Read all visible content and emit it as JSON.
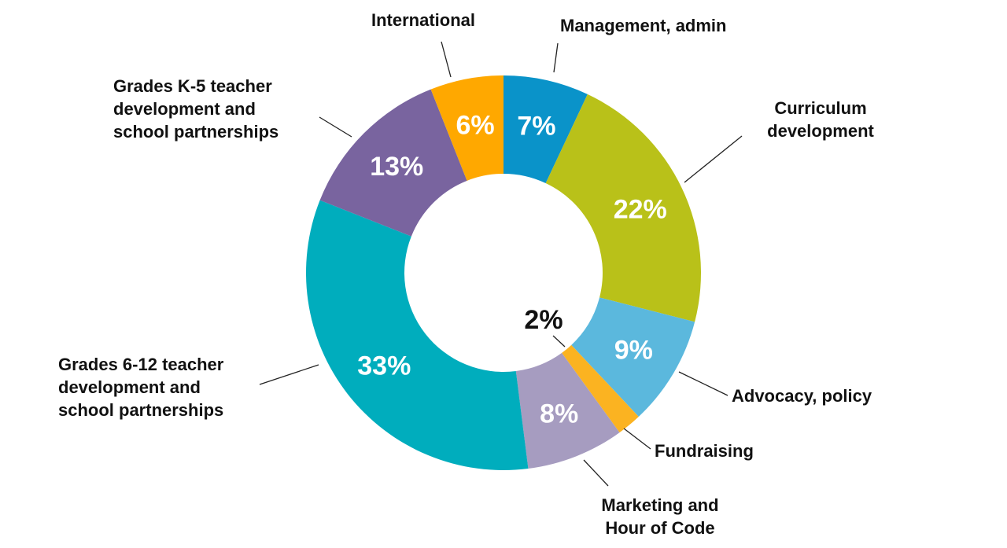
{
  "chart_data": {
    "type": "pie",
    "variant": "donut",
    "title": "",
    "slices": [
      {
        "label": "Management, admin",
        "value": 7,
        "value_label": "7%",
        "color": "#0a93c9"
      },
      {
        "label": "Curriculum development",
        "value": 22,
        "value_label": "22%",
        "color": "#b9c119"
      },
      {
        "label": "Advocacy, policy",
        "value": 9,
        "value_label": "9%",
        "color": "#5bb8dd"
      },
      {
        "label": "Fundraising",
        "value": 2,
        "value_label": "2%",
        "color": "#fbb321"
      },
      {
        "label": "Marketing and Hour of Code",
        "value": 8,
        "value_label": "8%",
        "color": "#a69cc0"
      },
      {
        "label": "Grades 6-12 teacher development and school partnerships",
        "value": 33,
        "value_label": "33%",
        "color": "#00adbd"
      },
      {
        "label": "Grades K-5 teacher development and school partnerships",
        "value": 13,
        "value_label": "13%",
        "color": "#79649f"
      },
      {
        "label": "International",
        "value": 6,
        "value_label": "6%",
        "color": "#ffa800"
      }
    ]
  }
}
